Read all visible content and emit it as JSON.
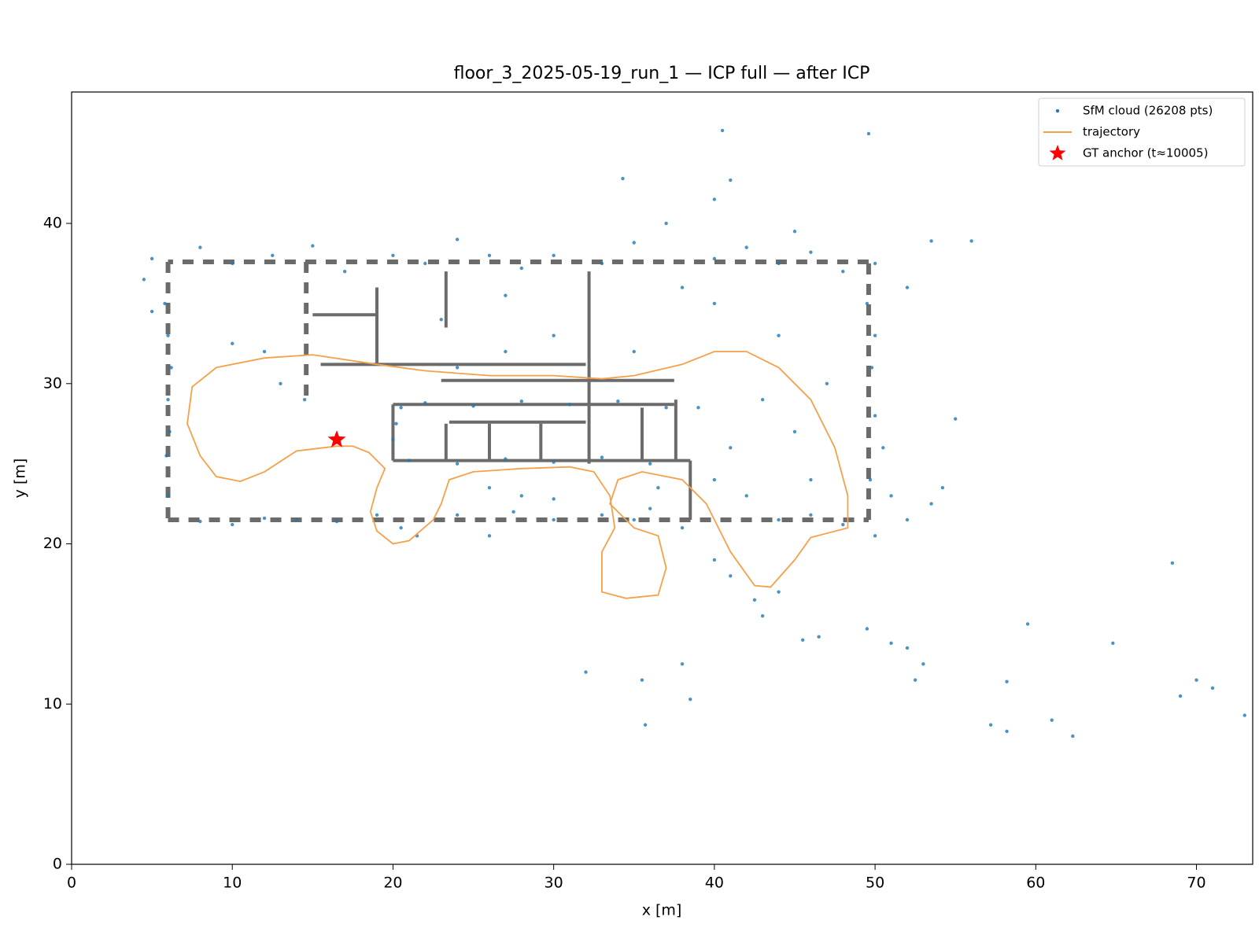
{
  "chart_data": {
    "type": "scatter",
    "title": "floor_3_2025-05-19_run_1 — ICP full — after ICP",
    "x_label": "x [m]",
    "y_label": "y [m]",
    "xlim": [
      0,
      73.5
    ],
    "ylim": [
      0,
      48.2
    ],
    "xticks": [
      0,
      10,
      20,
      30,
      40,
      50,
      60,
      70
    ],
    "yticks": [
      0,
      10,
      20,
      30,
      40
    ],
    "legend": "upper right",
    "outline_walls": [
      [
        6,
        21.5,
        49.6,
        21.5
      ],
      [
        49.6,
        21.5,
        49.6,
        37.6
      ],
      [
        49.6,
        37.6,
        6,
        37.6
      ],
      [
        6,
        37.6,
        6,
        21.5
      ],
      [
        14.6,
        37.6,
        14.6,
        29
      ]
    ],
    "walls": [
      [
        15,
        34.3,
        19,
        34.3
      ],
      [
        19,
        36,
        19,
        31.2
      ],
      [
        15.5,
        31.2,
        32,
        31.2
      ],
      [
        23.3,
        37,
        23.3,
        33.5
      ],
      [
        32.2,
        37,
        32.2,
        25
      ],
      [
        20,
        28.7,
        37.5,
        28.7
      ],
      [
        20,
        25.2,
        38.5,
        25.2
      ],
      [
        20,
        28.7,
        20,
        25.2
      ],
      [
        23.3,
        27.5,
        23.3,
        25.2
      ],
      [
        23.5,
        27.6,
        32,
        27.6
      ],
      [
        26,
        27.5,
        26,
        25.2
      ],
      [
        29.2,
        27.5,
        29.2,
        25.2
      ],
      [
        35.5,
        28.5,
        35.5,
        25.2
      ],
      [
        37.6,
        29,
        37.6,
        25.2
      ],
      [
        38.5,
        25.2,
        38.5,
        21.5
      ],
      [
        23,
        30.2,
        37.5,
        30.2
      ]
    ],
    "series": [
      {
        "name": "SfM cloud (26208 pts)",
        "color": "#1f77b4",
        "marker": "dot",
        "x": [
          5,
          8,
          10,
          12.5,
          15,
          17,
          20,
          22,
          24,
          26,
          28,
          30,
          33,
          35,
          38,
          40,
          42,
          44,
          46,
          48,
          50,
          45,
          37,
          40,
          34.3,
          5.8,
          6,
          6.2,
          6,
          6.1,
          5.9,
          6,
          4.5,
          5,
          8,
          10,
          12,
          14,
          16.5,
          19,
          20.5,
          21.5,
          24,
          26,
          27.5,
          30,
          33,
          35,
          36,
          38,
          40,
          41,
          42.5,
          44,
          46,
          48,
          50,
          52,
          43,
          49.5,
          50,
          49.8,
          50,
          50.5,
          49.7,
          51,
          53.5,
          52,
          53.5,
          20.5,
          22,
          25,
          28,
          31,
          34,
          37,
          21,
          24,
          27,
          30,
          33,
          36,
          20,
          20.2,
          24,
          27,
          30,
          35,
          40,
          44,
          47,
          45,
          43,
          41,
          39,
          46,
          42,
          28,
          26,
          30,
          36.5,
          40,
          23,
          27,
          13,
          12,
          10,
          14.5,
          16.5,
          40.5,
          49.6,
          41,
          55,
          54.2,
          56,
          68.5,
          64.8,
          59.5,
          58.2,
          62.3,
          61,
          57.2,
          58.2,
          70,
          71,
          69,
          73,
          52,
          53,
          51,
          52.5,
          45.5,
          46.5,
          49.5,
          35.5,
          35.7,
          38.5,
          32,
          38,
          44
        ],
        "y": [
          37.8,
          38.5,
          37.5,
          38,
          38.6,
          37,
          38,
          37.5,
          39,
          38,
          37.2,
          38,
          37.5,
          38.8,
          36,
          37.8,
          38.5,
          37.5,
          38.2,
          37,
          37.5,
          39.5,
          40,
          41.5,
          42.8,
          35,
          33,
          31,
          29,
          27,
          25.5,
          23,
          36.5,
          34.5,
          21.4,
          21.2,
          21.6,
          21.5,
          21.4,
          21.8,
          21,
          20.5,
          21.8,
          20.5,
          22,
          21.5,
          21.8,
          21.5,
          22.2,
          21,
          19,
          18,
          16.5,
          21.5,
          21.8,
          21.2,
          20.5,
          21.5,
          15.5,
          35,
          33,
          31,
          28,
          26,
          24,
          23,
          22.5,
          36,
          38.9,
          28.5,
          28.8,
          28.6,
          28.9,
          28.7,
          28.9,
          28.5,
          25.2,
          25,
          25.3,
          25.1,
          25.4,
          25,
          26.5,
          27.5,
          31,
          32,
          33,
          32,
          35,
          33,
          30,
          27,
          29,
          26,
          28.5,
          24,
          23,
          23,
          23.5,
          22.8,
          23.5,
          24,
          34,
          35.5,
          30,
          32,
          32.5,
          29,
          26.8,
          45.8,
          45.6,
          42.7,
          27.8,
          23.5,
          38.9,
          18.8,
          13.8,
          15,
          11.4,
          8,
          9,
          8.7,
          8.3,
          11.5,
          11,
          10.5,
          9.3,
          13.5,
          12.5,
          13.8,
          11.5,
          14,
          14.2,
          14.7,
          11.5,
          8.7,
          10.3,
          12,
          12.5,
          17
        ]
      },
      {
        "name": "trajectory",
        "color": "#f5a04a",
        "marker": "line",
        "x": [
          16.5,
          14,
          12,
          10.5,
          9,
          8,
          7.2,
          7.5,
          9,
          12,
          15,
          19,
          22,
          26,
          30,
          33,
          35,
          38,
          40,
          42,
          44,
          46,
          47.5,
          48.3,
          48.3,
          46,
          45,
          43.5,
          42.5,
          41,
          39.5,
          38,
          35.5,
          34,
          33.5,
          35,
          36.5,
          37,
          36.5,
          34.5,
          33,
          33,
          33.8,
          33.5,
          32.5,
          31,
          28,
          25,
          23.5,
          23,
          22.5,
          21,
          20,
          19,
          18.6,
          19,
          19.5,
          18.5,
          17.5,
          16.5
        ],
        "y": [
          26.1,
          25.8,
          24.5,
          23.9,
          24.2,
          25.5,
          27.5,
          29.8,
          31,
          31.6,
          31.8,
          31.2,
          30.8,
          30.5,
          30.5,
          30.3,
          30.5,
          31.2,
          32,
          32,
          31,
          29,
          26,
          23,
          21,
          20.4,
          19,
          17.3,
          17.4,
          19.5,
          22.5,
          24,
          24.5,
          24,
          22.5,
          21,
          20.5,
          18.5,
          16.8,
          16.6,
          17,
          19.5,
          21,
          23,
          24.5,
          24.8,
          24.7,
          24.5,
          24,
          22.5,
          21.5,
          20.2,
          20,
          20.8,
          22,
          23.5,
          24.7,
          25.7,
          26.1,
          26.1
        ]
      },
      {
        "name": "GT anchor (t≈10005)",
        "color": "#ff0000",
        "marker": "star",
        "x": [
          16.5
        ],
        "y": [
          26.5
        ]
      }
    ]
  }
}
